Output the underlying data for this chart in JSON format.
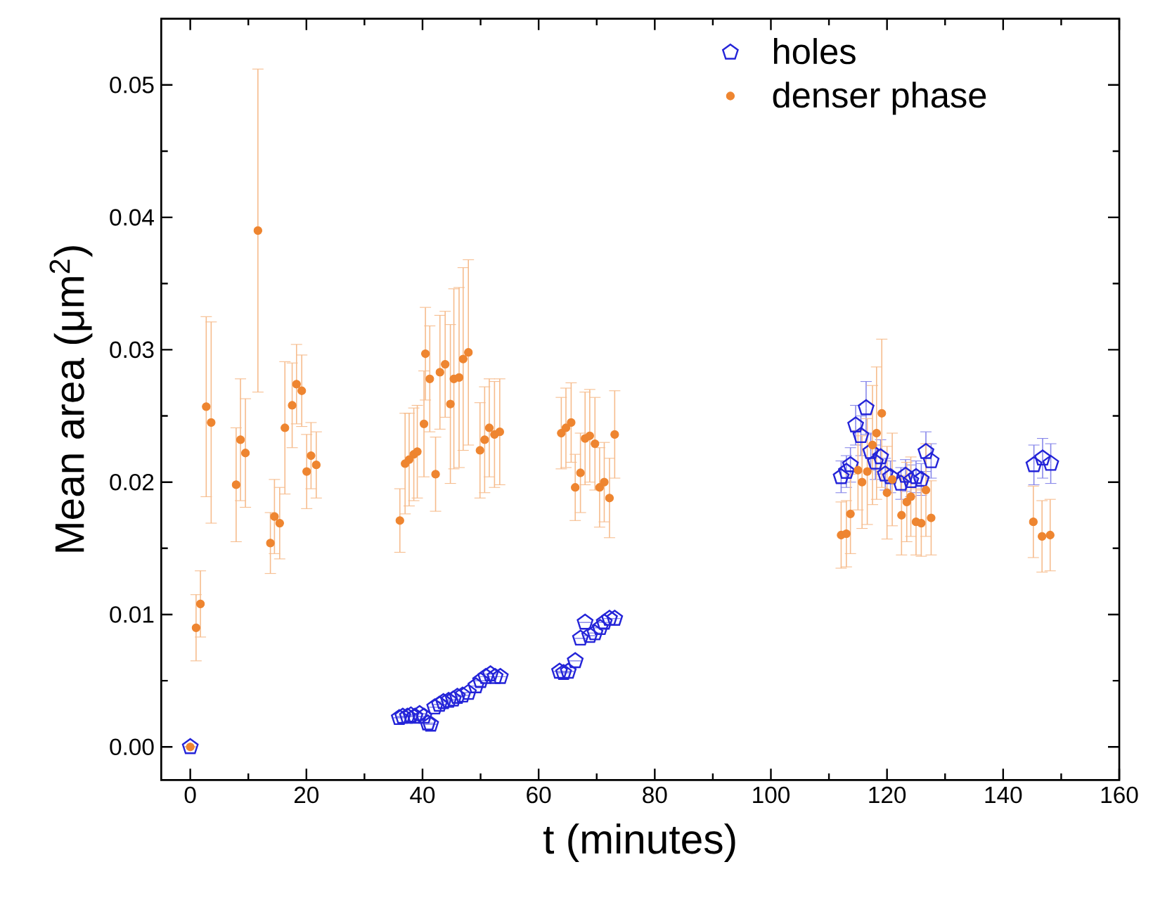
{
  "chart_data": {
    "type": "scatter",
    "xlabel": "t (minutes)",
    "ylabel": "Mean area (μm$^{2}$)",
    "xlim": [
      -5,
      160
    ],
    "ylim": [
      -0.0025,
      0.055
    ],
    "xticks": [
      0,
      20,
      40,
      60,
      80,
      100,
      120,
      140,
      160
    ],
    "yticks": [
      {
        "value": 0,
        "label": "0.00"
      },
      0.01,
      0.02,
      0.03,
      0.04,
      0.05
    ],
    "legend": "top right",
    "grid": false,
    "series": [
      {
        "name": "holes",
        "color": "#2424d8",
        "x": [
          0,
          36.0,
          36.6,
          37.4,
          38.0,
          38.7,
          39.5,
          40.25,
          40.9,
          41.4,
          42.1,
          42.9,
          43.6,
          44.5,
          45.3,
          46.0,
          46.9,
          47.9,
          49.2,
          50.0,
          50.9,
          51.7,
          52.5,
          53.4,
          63.6,
          64.3,
          65.1,
          66.3,
          67.2,
          68.0,
          68.8,
          69.7,
          70.6,
          71.3,
          72.2,
          73.1,
          112.1,
          113.0,
          113.7,
          114.6,
          115.5,
          116.4,
          117.2,
          118.0,
          118.9,
          119.7,
          120.6,
          122.4,
          123.2,
          124.1,
          125.0,
          125.9,
          126.7,
          127.6,
          145.3,
          146.8,
          148.2
        ],
        "values": [
          0,
          0.0022,
          0.0023,
          0.0023,
          0.0024,
          0.0023,
          0.0025,
          0.0023,
          0.0018,
          0.0017,
          0.003,
          0.0032,
          0.0034,
          0.0035,
          0.0036,
          0.0038,
          0.0039,
          0.0041,
          0.0046,
          0.005,
          0.0053,
          0.0055,
          0.0053,
          0.0053,
          0.0057,
          0.0056,
          0.0057,
          0.0065,
          0.0082,
          0.0094,
          0.0084,
          0.0086,
          0.009,
          0.0094,
          0.0097,
          0.0097,
          0.0204,
          0.0208,
          0.0213,
          0.0243,
          0.0235,
          0.0256,
          0.0223,
          0.0215,
          0.0219,
          0.0206,
          0.0204,
          0.0199,
          0.0205,
          0.0201,
          0.0204,
          0.0202,
          0.0223,
          0.0216,
          0.0213,
          0.0218,
          0.0214
        ],
        "errors": [
          null,
          null,
          null,
          null,
          null,
          null,
          null,
          null,
          null,
          null,
          null,
          null,
          null,
          null,
          null,
          null,
          null,
          null,
          null,
          null,
          null,
          null,
          null,
          null,
          null,
          null,
          null,
          null,
          null,
          null,
          null,
          null,
          null,
          null,
          null,
          null,
          0.0012,
          0.0012,
          0.0013,
          0.0015,
          0.0015,
          0.002,
          0.0014,
          0.0013,
          0.0013,
          0.0012,
          0.0012,
          0.0012,
          0.0012,
          0.0012,
          0.0012,
          0.0012,
          0.0015,
          0.0013,
          0.0015,
          0.0015,
          0.0015
        ]
      },
      {
        "name": "denser phase",
        "color": "#ee8530",
        "marker": "circle",
        "x": [
          0,
          1.0,
          1.75,
          2.75,
          3.6,
          7.9,
          8.65,
          9.5,
          11.65,
          13.8,
          14.5,
          15.4,
          16.3,
          17.55,
          18.3,
          19.2,
          20.05,
          20.8,
          21.7,
          36.1,
          37.0,
          37.7,
          38.5,
          39.1,
          40.25,
          40.5,
          41.25,
          42.25,
          43.0,
          43.9,
          44.8,
          45.4,
          46.3,
          47.0,
          47.9,
          49.9,
          50.7,
          51.5,
          52.4,
          53.3,
          63.9,
          64.7,
          65.6,
          66.3,
          67.2,
          68.0,
          68.8,
          69.7,
          70.5,
          71.3,
          72.2,
          73.1,
          112.1,
          113.0,
          113.7,
          115.0,
          115.7,
          116.6,
          117.5,
          118.2,
          119.1,
          120.0,
          120.9,
          122.5,
          123.4,
          124.1,
          125.0,
          125.9,
          126.7,
          127.6,
          145.2,
          146.7,
          148.1
        ],
        "values": [
          0,
          0.009,
          0.0108,
          0.0257,
          0.0245,
          0.0198,
          0.0232,
          0.0222,
          0.039,
          0.0154,
          0.0174,
          0.0169,
          0.0241,
          0.0258,
          0.0274,
          0.0269,
          0.0208,
          0.022,
          0.0213,
          0.0171,
          0.0214,
          0.0217,
          0.0221,
          0.0223,
          0.0244,
          0.0297,
          0.0278,
          0.0206,
          0.0283,
          0.0289,
          0.0259,
          0.0278,
          0.0279,
          0.0293,
          0.0298,
          0.0224,
          0.0232,
          0.0241,
          0.0236,
          0.0238,
          0.0237,
          0.0241,
          0.0245,
          0.0196,
          0.0207,
          0.0233,
          0.0235,
          0.0229,
          0.0196,
          0.02,
          0.0188,
          0.0236,
          0.016,
          0.0161,
          0.0176,
          0.0209,
          0.02,
          0.0208,
          0.0228,
          0.0237,
          0.0252,
          0.0192,
          0.0202,
          0.0175,
          0.0185,
          0.0189,
          0.017,
          0.0169,
          0.0194,
          0.0173,
          0.017,
          0.0159,
          0.016
        ],
        "errors": [
          null,
          0.0025,
          0.0025,
          0.0068,
          0.0076,
          0.0043,
          0.0046,
          0.0041,
          0.0122,
          0.0023,
          0.0028,
          0.0027,
          0.005,
          0.0032,
          0.003,
          0.0027,
          0.0028,
          0.0025,
          0.0025,
          0.0024,
          0.0038,
          0.0035,
          0.0035,
          0.0035,
          0.004,
          0.0035,
          0.004,
          0.0028,
          0.0043,
          0.004,
          0.006,
          0.0068,
          0.0068,
          0.0069,
          0.007,
          0.0036,
          0.004,
          0.0037,
          0.004,
          0.004,
          0.0027,
          0.003,
          0.003,
          0.0025,
          0.003,
          0.0035,
          0.0035,
          0.0035,
          0.003,
          0.003,
          0.003,
          0.0033,
          0.0025,
          0.0025,
          0.003,
          0.003,
          0.0035,
          0.004,
          0.0045,
          0.005,
          0.0056,
          0.0035,
          0.0035,
          0.003,
          0.003,
          0.003,
          0.0025,
          0.0025,
          0.0035,
          0.0028,
          0.0027,
          0.0027,
          0.0027
        ]
      }
    ]
  }
}
